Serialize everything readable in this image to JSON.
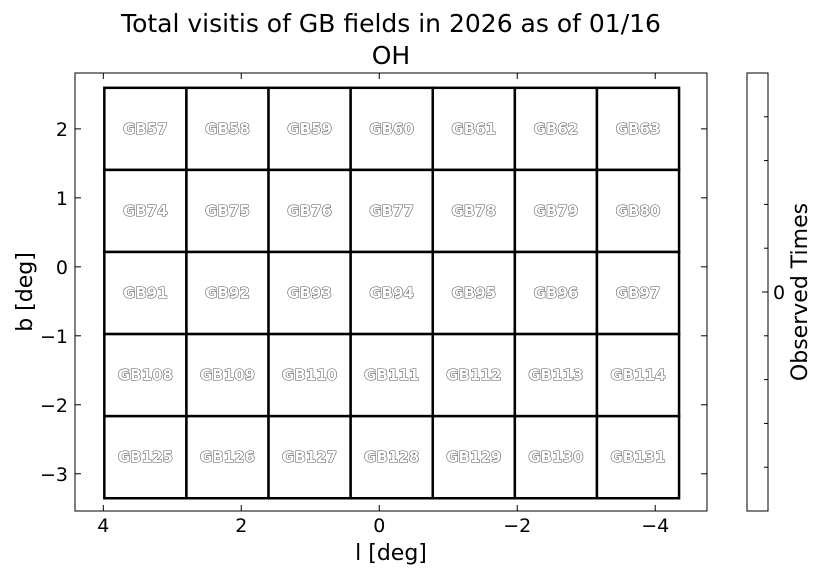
{
  "chart_data": {
    "type": "heatmap",
    "title": "Total visitis of GB fields in 2026 as of 01/16",
    "subtitle": "OH",
    "xlabel": "l [deg]",
    "ylabel": "b [deg]",
    "xlim": [
      4.41,
      -4.75
    ],
    "ylim": [
      -3.54,
      2.81
    ],
    "xticks": [
      4,
      2,
      0,
      -2,
      -4
    ],
    "xtick_labels": [
      "4",
      "2",
      "0",
      "−2",
      "−4"
    ],
    "yticks": [
      2,
      1,
      0,
      -1,
      -2,
      -3
    ],
    "ytick_labels": [
      "2",
      "1",
      "0",
      "−1",
      "−2",
      "−3"
    ],
    "grid": false,
    "field_size_deg": [
      1.19,
      1.19
    ],
    "l_centers": [
      3.39,
      2.2,
      1.01,
      -0.18,
      -1.37,
      -2.56,
      -3.75
    ],
    "b_centers": [
      2.0,
      0.81,
      -0.38,
      -1.57,
      -2.76
    ],
    "fields": [
      [
        "GB57",
        "GB58",
        "GB59",
        "GB60",
        "GB61",
        "GB62",
        "GB63"
      ],
      [
        "GB74",
        "GB75",
        "GB76",
        "GB77",
        "GB78",
        "GB79",
        "GB80"
      ],
      [
        "GB91",
        "GB92",
        "GB93",
        "GB94",
        "GB95",
        "GB96",
        "GB97"
      ],
      [
        "GB108",
        "GB109",
        "GB110",
        "GB111",
        "GB112",
        "GB113",
        "GB114"
      ],
      [
        "GB125",
        "GB126",
        "GB127",
        "GB128",
        "GB129",
        "GB130",
        "GB131"
      ]
    ],
    "observed_times": 0,
    "colorbar": {
      "label": "Observed Times",
      "ticks": [
        0
      ],
      "tick_labels": [
        "0"
      ]
    }
  }
}
